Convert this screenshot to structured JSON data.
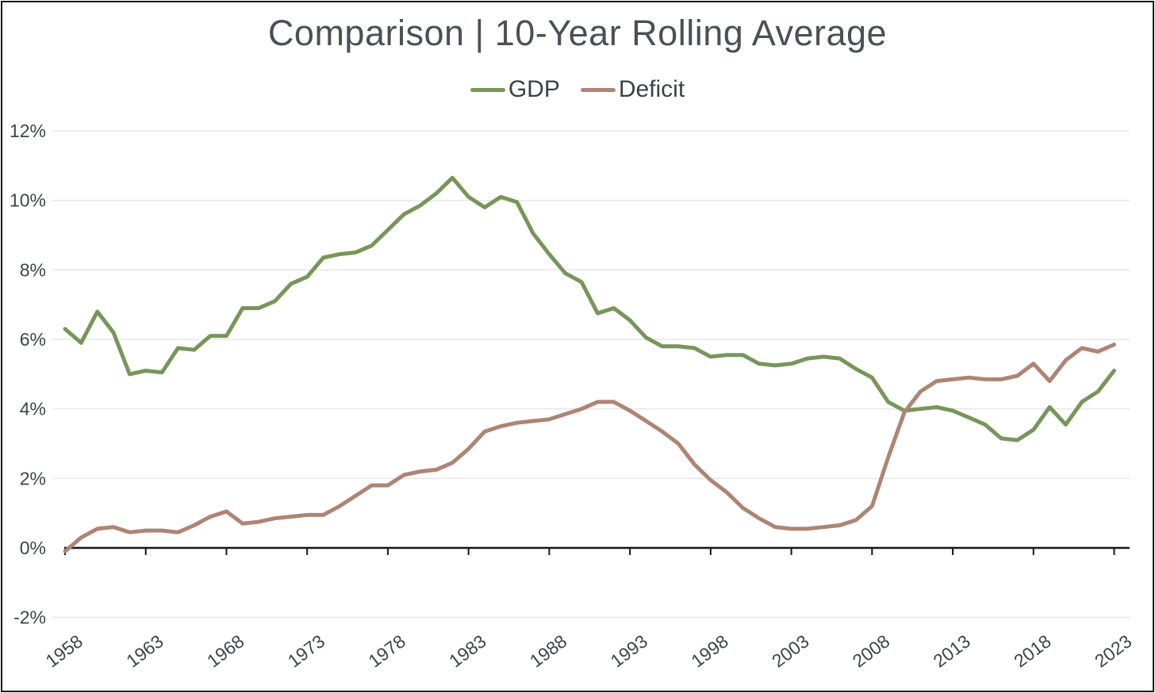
{
  "title": "Comparison | 10-Year Rolling Average",
  "chart_data": {
    "type": "line",
    "title": "Comparison | 10-Year Rolling Average",
    "xlabel": "",
    "ylabel": "",
    "ylim": [
      -2,
      12
    ],
    "xlim": [
      1958,
      2023
    ],
    "grid": "horizontal",
    "legend_position": "top-center",
    "x_start_year": 1958,
    "y_ticks": [
      {
        "value": 12,
        "label": "12%"
      },
      {
        "value": 10,
        "label": "10%"
      },
      {
        "value": 8,
        "label": "8%"
      },
      {
        "value": 6,
        "label": "6%"
      },
      {
        "value": 4,
        "label": "4%"
      },
      {
        "value": 2,
        "label": "2%"
      },
      {
        "value": 0,
        "label": "0%"
      },
      {
        "value": -2,
        "label": "-2%"
      }
    ],
    "x_ticks": [
      {
        "value": 1958,
        "label": "1958"
      },
      {
        "value": 1963,
        "label": "1963"
      },
      {
        "value": 1968,
        "label": "1968"
      },
      {
        "value": 1973,
        "label": "1973"
      },
      {
        "value": 1978,
        "label": "1978"
      },
      {
        "value": 1983,
        "label": "1983"
      },
      {
        "value": 1988,
        "label": "1988"
      },
      {
        "value": 1993,
        "label": "1993"
      },
      {
        "value": 1998,
        "label": "1998"
      },
      {
        "value": 2003,
        "label": "2003"
      },
      {
        "value": 2008,
        "label": "2008"
      },
      {
        "value": 2013,
        "label": "2013"
      },
      {
        "value": 2018,
        "label": "2018"
      },
      {
        "value": 2023,
        "label": "2023"
      }
    ],
    "series": [
      {
        "name": "GDP",
        "color": "#77965a",
        "values": [
          6.3,
          5.9,
          6.8,
          6.2,
          5.0,
          5.1,
          5.05,
          5.75,
          5.7,
          6.1,
          6.1,
          6.9,
          6.9,
          7.1,
          7.6,
          7.8,
          8.35,
          8.45,
          8.5,
          8.7,
          9.15,
          9.6,
          9.85,
          10.2,
          10.65,
          10.1,
          9.8,
          10.1,
          9.95,
          9.05,
          8.45,
          7.9,
          7.65,
          6.75,
          6.9,
          6.55,
          6.05,
          5.8,
          5.8,
          5.75,
          5.5,
          5.55,
          5.55,
          5.3,
          5.25,
          5.3,
          5.45,
          5.5,
          5.45,
          5.15,
          4.9,
          4.2,
          3.95,
          4.0,
          4.05,
          3.95,
          3.75,
          3.55,
          3.15,
          3.1,
          3.4,
          4.05,
          3.55,
          4.2,
          4.5,
          5.1
        ]
      },
      {
        "name": "Deficit",
        "color": "#ae8474",
        "values": [
          -0.1,
          0.3,
          0.55,
          0.6,
          0.45,
          0.5,
          0.5,
          0.45,
          0.65,
          0.9,
          1.05,
          0.7,
          0.75,
          0.85,
          0.9,
          0.95,
          0.95,
          1.2,
          1.5,
          1.8,
          1.8,
          2.1,
          2.2,
          2.25,
          2.45,
          2.85,
          3.35,
          3.5,
          3.6,
          3.65,
          3.7,
          3.85,
          4.0,
          4.2,
          4.2,
          3.95,
          3.65,
          3.35,
          3.0,
          2.4,
          1.95,
          1.6,
          1.15,
          0.85,
          0.6,
          0.55,
          0.55,
          0.6,
          0.65,
          0.8,
          1.2,
          2.6,
          3.9,
          4.5,
          4.8,
          4.85,
          4.9,
          4.85,
          4.85,
          4.95,
          5.3,
          4.8,
          5.4,
          5.75,
          5.65,
          5.85
        ]
      }
    ],
    "colors": {
      "gridline": "#e7e7e7",
      "zero_axis": "#161616",
      "tick": "#161616",
      "axis_text": "#3f444a",
      "title_text": "#4b5057",
      "legend_text": "#3c4147",
      "background": "#ffffff"
    }
  }
}
